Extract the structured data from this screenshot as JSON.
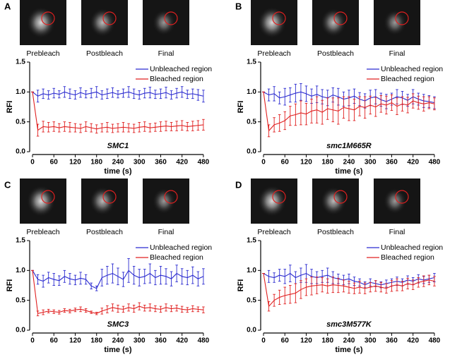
{
  "chart_data": [
    {
      "type": "line",
      "panel_label": "A",
      "image_captions": [
        "Prebleach",
        "Postbleach",
        "Final"
      ],
      "annotation": "SMC1",
      "ylabel": "RFI",
      "xlabel": "time (s)",
      "xlim": [
        0,
        500
      ],
      "ylim": [
        0,
        1.5
      ],
      "xticks": [
        0,
        60,
        120,
        180,
        240,
        300,
        360,
        420,
        480
      ],
      "yticks": [
        {
          "value": 0,
          "label": "0.0"
        },
        0.5,
        {
          "value": 1,
          "label": "1.0"
        },
        1.5
      ],
      "legend": "upper right",
      "x": [
        0,
        15,
        30,
        45,
        60,
        75,
        90,
        105,
        120,
        135,
        150,
        165,
        180,
        195,
        210,
        225,
        240,
        255,
        270,
        285,
        300,
        315,
        330,
        345,
        360,
        375,
        390,
        405,
        420,
        435,
        450,
        465,
        480
      ],
      "series": [
        {
          "name": "Unbleached region",
          "color": "#2b2bd0",
          "values": [
            1.0,
            0.93,
            0.97,
            0.95,
            0.98,
            0.96,
            1.0,
            0.97,
            0.95,
            0.99,
            0.96,
            0.98,
            1.0,
            0.95,
            0.97,
            0.99,
            0.96,
            0.98,
            1.0,
            0.97,
            0.95,
            0.98,
            0.99,
            0.96,
            0.97,
            0.99,
            0.95,
            0.98,
            1.0,
            0.96,
            0.97,
            0.95,
            0.93
          ],
          "errors": [
            0,
            0.1,
            0.08,
            0.07,
            0.08,
            0.06,
            0.09,
            0.08,
            0.07,
            0.08,
            0.06,
            0.08,
            0.09,
            0.07,
            0.08,
            0.08,
            0.06,
            0.07,
            0.09,
            0.08,
            0.07,
            0.08,
            0.09,
            0.07,
            0.08,
            0.09,
            0.07,
            0.08,
            0.09,
            0.07,
            0.08,
            0.09,
            0.1
          ]
        },
        {
          "name": "Bleached region",
          "color": "#e02020",
          "values": [
            1.0,
            0.36,
            0.42,
            0.41,
            0.42,
            0.4,
            0.42,
            0.41,
            0.4,
            0.39,
            0.42,
            0.4,
            0.38,
            0.4,
            0.41,
            0.39,
            0.4,
            0.41,
            0.4,
            0.39,
            0.41,
            0.42,
            0.4,
            0.41,
            0.42,
            0.43,
            0.42,
            0.43,
            0.44,
            0.42,
            0.43,
            0.44,
            0.45
          ],
          "errors": [
            0,
            0.1,
            0.09,
            0.08,
            0.08,
            0.07,
            0.08,
            0.08,
            0.07,
            0.07,
            0.08,
            0.07,
            0.07,
            0.07,
            0.08,
            0.07,
            0.07,
            0.08,
            0.07,
            0.07,
            0.08,
            0.08,
            0.07,
            0.07,
            0.08,
            0.08,
            0.07,
            0.08,
            0.08,
            0.07,
            0.08,
            0.08,
            0.09
          ]
        }
      ]
    },
    {
      "type": "line",
      "panel_label": "B",
      "image_captions": [
        "Prebleach",
        "Postbleach",
        "Final"
      ],
      "annotation": "smc1M665R",
      "ylabel": "RFI",
      "xlabel": "time (s)",
      "xlim": [
        0,
        500
      ],
      "ylim": [
        0,
        1.5
      ],
      "xticks": [
        0,
        60,
        120,
        180,
        240,
        300,
        360,
        420,
        480
      ],
      "yticks": [
        {
          "value": 0,
          "label": "0.0"
        },
        0.5,
        {
          "value": 1,
          "label": "1.0"
        },
        1.5
      ],
      "legend": "upper right",
      "x": [
        0,
        15,
        30,
        45,
        60,
        75,
        90,
        105,
        120,
        135,
        150,
        165,
        180,
        195,
        210,
        225,
        240,
        255,
        270,
        285,
        300,
        315,
        330,
        345,
        360,
        375,
        390,
        405,
        420,
        435,
        450,
        465,
        480
      ],
      "series": [
        {
          "name": "Unbleached region",
          "color": "#2b2bd0",
          "values": [
            1.0,
            0.95,
            0.97,
            0.9,
            0.92,
            0.95,
            0.98,
            1.0,
            0.97,
            0.93,
            0.96,
            0.92,
            0.9,
            0.95,
            0.92,
            0.88,
            0.9,
            0.93,
            0.88,
            0.85,
            0.9,
            0.92,
            0.87,
            0.84,
            0.88,
            0.92,
            0.9,
            0.86,
            0.92,
            0.88,
            0.85,
            0.84,
            0.82
          ],
          "errors": [
            0,
            0.1,
            0.12,
            0.1,
            0.14,
            0.12,
            0.15,
            0.14,
            0.13,
            0.12,
            0.14,
            0.12,
            0.13,
            0.12,
            0.14,
            0.12,
            0.13,
            0.12,
            0.11,
            0.12,
            0.13,
            0.12,
            0.11,
            0.12,
            0.1,
            0.12,
            0.11,
            0.1,
            0.12,
            0.1,
            0.11,
            0.1,
            0.1
          ]
        },
        {
          "name": "Bleached region",
          "color": "#e02020",
          "values": [
            1.0,
            0.35,
            0.45,
            0.48,
            0.52,
            0.6,
            0.62,
            0.65,
            0.63,
            0.68,
            0.7,
            0.66,
            0.72,
            0.7,
            0.68,
            0.74,
            0.72,
            0.7,
            0.76,
            0.74,
            0.78,
            0.75,
            0.8,
            0.78,
            0.82,
            0.76,
            0.8,
            0.78,
            0.85,
            0.82,
            0.8,
            0.82,
            0.8
          ],
          "errors": [
            0,
            0.1,
            0.12,
            0.14,
            0.15,
            0.16,
            0.18,
            0.2,
            0.18,
            0.2,
            0.22,
            0.2,
            0.18,
            0.2,
            0.22,
            0.18,
            0.2,
            0.18,
            0.16,
            0.18,
            0.15,
            0.16,
            0.14,
            0.15,
            0.13,
            0.14,
            0.12,
            0.13,
            0.12,
            0.11,
            0.12,
            0.1,
            0.1
          ]
        }
      ]
    },
    {
      "type": "line",
      "panel_label": "C",
      "image_captions": [
        "Prebleach",
        "Postbleach",
        "Final"
      ],
      "annotation": "SMC3",
      "ylabel": "RFI",
      "xlabel": "time (s)",
      "xlim": [
        0,
        500
      ],
      "ylim": [
        0,
        1.5
      ],
      "xticks": [
        0,
        60,
        120,
        180,
        240,
        300,
        360,
        420,
        480
      ],
      "yticks": [
        {
          "value": 0,
          "label": "0.0"
        },
        0.5,
        {
          "value": 1,
          "label": "1.0"
        },
        1.5
      ],
      "legend": "upper right",
      "x": [
        0,
        15,
        30,
        45,
        60,
        75,
        90,
        105,
        120,
        135,
        150,
        165,
        180,
        195,
        210,
        225,
        240,
        255,
        270,
        285,
        300,
        315,
        330,
        345,
        360,
        375,
        390,
        405,
        420,
        435,
        450,
        465,
        480
      ],
      "series": [
        {
          "name": "Unbleached region",
          "color": "#2b2bd0",
          "values": [
            1.0,
            0.85,
            0.82,
            0.88,
            0.85,
            0.83,
            0.9,
            0.86,
            0.84,
            0.87,
            0.85,
            0.74,
            0.7,
            0.88,
            0.92,
            0.95,
            0.9,
            0.85,
            1.0,
            0.92,
            0.88,
            0.9,
            0.95,
            0.88,
            0.92,
            0.9,
            0.86,
            0.95,
            0.9,
            0.88,
            0.92,
            0.86,
            0.9
          ],
          "errors": [
            0,
            0.08,
            0.1,
            0.09,
            0.1,
            0.08,
            0.1,
            0.09,
            0.08,
            0.1,
            0.08,
            0.05,
            0.04,
            0.14,
            0.15,
            0.16,
            0.14,
            0.12,
            0.2,
            0.15,
            0.14,
            0.12,
            0.16,
            0.12,
            0.15,
            0.13,
            0.12,
            0.14,
            0.13,
            0.12,
            0.14,
            0.12,
            0.13
          ]
        },
        {
          "name": "Bleached region",
          "color": "#e02020",
          "values": [
            1.0,
            0.28,
            0.3,
            0.32,
            0.31,
            0.3,
            0.33,
            0.32,
            0.34,
            0.35,
            0.33,
            0.3,
            0.28,
            0.32,
            0.35,
            0.38,
            0.36,
            0.35,
            0.38,
            0.36,
            0.4,
            0.37,
            0.38,
            0.36,
            0.35,
            0.38,
            0.36,
            0.37,
            0.35,
            0.34,
            0.36,
            0.35,
            0.34
          ],
          "errors": [
            0,
            0.04,
            0.04,
            0.03,
            0.03,
            0.03,
            0.03,
            0.03,
            0.03,
            0.04,
            0.03,
            0.02,
            0.02,
            0.05,
            0.06,
            0.06,
            0.06,
            0.05,
            0.06,
            0.06,
            0.06,
            0.05,
            0.06,
            0.05,
            0.05,
            0.06,
            0.05,
            0.05,
            0.05,
            0.04,
            0.05,
            0.04,
            0.05
          ]
        }
      ]
    },
    {
      "type": "line",
      "panel_label": "D",
      "image_captions": [
        "Prebleach",
        "Postbleach",
        "Final"
      ],
      "annotation": "smc3M577K",
      "ylabel": "RFI",
      "xlabel": "time (s)",
      "xlim": [
        0,
        500
      ],
      "ylim": [
        0,
        1.5
      ],
      "xticks": [
        0,
        60,
        120,
        180,
        240,
        300,
        360,
        420,
        480
      ],
      "yticks": [
        {
          "value": 0,
          "label": "0.0"
        },
        0.5,
        {
          "value": 1,
          "label": "1.0"
        },
        1.5
      ],
      "legend": "upper right",
      "x": [
        0,
        15,
        30,
        45,
        60,
        75,
        90,
        105,
        120,
        135,
        150,
        165,
        180,
        195,
        210,
        225,
        240,
        255,
        270,
        285,
        300,
        315,
        330,
        345,
        360,
        375,
        390,
        405,
        420,
        435,
        450,
        465,
        480
      ],
      "series": [
        {
          "name": "Unbleached region",
          "color": "#2b2bd0",
          "values": [
            0.95,
            0.9,
            0.88,
            0.92,
            0.9,
            0.95,
            0.88,
            0.92,
            0.95,
            0.9,
            0.88,
            0.9,
            0.92,
            0.88,
            0.86,
            0.84,
            0.86,
            0.82,
            0.8,
            0.76,
            0.8,
            0.78,
            0.76,
            0.78,
            0.8,
            0.82,
            0.8,
            0.84,
            0.82,
            0.86,
            0.84,
            0.86,
            0.88
          ],
          "errors": [
            0,
            0.1,
            0.08,
            0.1,
            0.12,
            0.14,
            0.1,
            0.12,
            0.15,
            0.12,
            0.1,
            0.1,
            0.12,
            0.1,
            0.08,
            0.08,
            0.08,
            0.07,
            0.06,
            0.05,
            0.06,
            0.05,
            0.05,
            0.06,
            0.06,
            0.07,
            0.06,
            0.07,
            0.06,
            0.07,
            0.06,
            0.06,
            0.07
          ]
        },
        {
          "name": "Bleached region",
          "color": "#e02020",
          "values": [
            0.95,
            0.4,
            0.5,
            0.55,
            0.58,
            0.6,
            0.62,
            0.68,
            0.72,
            0.74,
            0.75,
            0.76,
            0.74,
            0.76,
            0.75,
            0.74,
            0.72,
            0.7,
            0.72,
            0.7,
            0.72,
            0.74,
            0.72,
            0.7,
            0.74,
            0.76,
            0.74,
            0.78,
            0.76,
            0.8,
            0.82,
            0.84,
            0.82
          ],
          "errors": [
            0,
            0.08,
            0.1,
            0.12,
            0.14,
            0.15,
            0.16,
            0.15,
            0.14,
            0.15,
            0.14,
            0.12,
            0.12,
            0.13,
            0.12,
            0.1,
            0.1,
            0.09,
            0.1,
            0.09,
            0.08,
            0.09,
            0.08,
            0.08,
            0.09,
            0.1,
            0.08,
            0.09,
            0.08,
            0.08,
            0.09,
            0.08,
            0.08
          ]
        }
      ]
    }
  ]
}
